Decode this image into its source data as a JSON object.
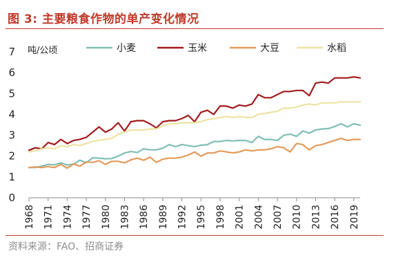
{
  "header": {
    "title": "图 3:  主要粮食作物的单产变化情况"
  },
  "footer": {
    "source": "资料来源：FAO、招商证券"
  },
  "colors": {
    "accent": "#c0392b",
    "wheat": "#7fbfb2",
    "corn": "#a11a1c",
    "soy": "#e39a5b",
    "rice": "#ece3a3"
  },
  "chart_data": {
    "type": "line",
    "ylabel": "吨/公顷",
    "ylim": [
      0,
      7
    ],
    "yticks": [
      "0",
      "1",
      "2",
      "3",
      "4",
      "5",
      "6",
      "7"
    ],
    "xlim": [
      1968,
      2020
    ],
    "xticks": [
      "1968",
      "1971",
      "1974",
      "1977",
      "1980",
      "1983",
      "1986",
      "1989",
      "1992",
      "1995",
      "1998",
      "2001",
      "2004",
      "2007",
      "2010",
      "2013",
      "2016",
      "2019"
    ],
    "grid": false,
    "legend": "top",
    "series": [
      {
        "name": "小麦",
        "color": "#7fbfb2",
        "points": [
          [
            1968,
            1.45
          ],
          [
            1969,
            1.45
          ],
          [
            1970,
            1.52
          ],
          [
            1971,
            1.6
          ],
          [
            1972,
            1.58
          ],
          [
            1973,
            1.68
          ],
          [
            1974,
            1.57
          ],
          [
            1975,
            1.62
          ],
          [
            1976,
            1.8
          ],
          [
            1977,
            1.68
          ],
          [
            1978,
            1.92
          ],
          [
            1979,
            1.9
          ],
          [
            1980,
            1.87
          ],
          [
            1981,
            1.88
          ],
          [
            1982,
            2.0
          ],
          [
            1983,
            2.15
          ],
          [
            1984,
            2.22
          ],
          [
            1985,
            2.17
          ],
          [
            1986,
            2.35
          ],
          [
            1987,
            2.3
          ],
          [
            1988,
            2.3
          ],
          [
            1989,
            2.38
          ],
          [
            1990,
            2.55
          ],
          [
            1991,
            2.45
          ],
          [
            1992,
            2.55
          ],
          [
            1993,
            2.5
          ],
          [
            1994,
            2.45
          ],
          [
            1995,
            2.52
          ],
          [
            1996,
            2.55
          ],
          [
            1997,
            2.7
          ],
          [
            1998,
            2.7
          ],
          [
            1999,
            2.75
          ],
          [
            2000,
            2.73
          ],
          [
            2001,
            2.75
          ],
          [
            2002,
            2.75
          ],
          [
            2003,
            2.65
          ],
          [
            2004,
            2.95
          ],
          [
            2005,
            2.8
          ],
          [
            2006,
            2.8
          ],
          [
            2007,
            2.75
          ],
          [
            2008,
            3.0
          ],
          [
            2009,
            3.05
          ],
          [
            2010,
            2.95
          ],
          [
            2011,
            3.2
          ],
          [
            2012,
            3.1
          ],
          [
            2013,
            3.25
          ],
          [
            2014,
            3.3
          ],
          [
            2015,
            3.32
          ],
          [
            2016,
            3.42
          ],
          [
            2017,
            3.55
          ],
          [
            2018,
            3.4
          ],
          [
            2019,
            3.55
          ],
          [
            2020,
            3.48
          ]
        ]
      },
      {
        "name": "玉米",
        "color": "#a11a1c",
        "points": [
          [
            1968,
            2.28
          ],
          [
            1969,
            2.4
          ],
          [
            1970,
            2.35
          ],
          [
            1971,
            2.65
          ],
          [
            1972,
            2.55
          ],
          [
            1973,
            2.8
          ],
          [
            1974,
            2.6
          ],
          [
            1975,
            2.75
          ],
          [
            1976,
            2.8
          ],
          [
            1977,
            2.9
          ],
          [
            1978,
            3.15
          ],
          [
            1979,
            3.4
          ],
          [
            1980,
            3.15
          ],
          [
            1981,
            3.3
          ],
          [
            1982,
            3.6
          ],
          [
            1983,
            3.2
          ],
          [
            1984,
            3.65
          ],
          [
            1985,
            3.7
          ],
          [
            1986,
            3.7
          ],
          [
            1987,
            3.55
          ],
          [
            1988,
            3.35
          ],
          [
            1989,
            3.65
          ],
          [
            1990,
            3.7
          ],
          [
            1991,
            3.7
          ],
          [
            1992,
            3.8
          ],
          [
            1993,
            3.95
          ],
          [
            1994,
            3.65
          ],
          [
            1995,
            4.1
          ],
          [
            1996,
            4.2
          ],
          [
            1997,
            4.0
          ],
          [
            1998,
            4.4
          ],
          [
            1999,
            4.4
          ],
          [
            2000,
            4.3
          ],
          [
            2001,
            4.45
          ],
          [
            2002,
            4.4
          ],
          [
            2003,
            4.5
          ],
          [
            2004,
            4.95
          ],
          [
            2005,
            4.8
          ],
          [
            2006,
            4.8
          ],
          [
            2007,
            4.95
          ],
          [
            2008,
            5.1
          ],
          [
            2009,
            5.1
          ],
          [
            2010,
            5.15
          ],
          [
            2011,
            5.15
          ],
          [
            2012,
            4.9
          ],
          [
            2013,
            5.5
          ],
          [
            2014,
            5.55
          ],
          [
            2015,
            5.5
          ],
          [
            2016,
            5.75
          ],
          [
            2017,
            5.75
          ],
          [
            2018,
            5.75
          ],
          [
            2019,
            5.8
          ],
          [
            2020,
            5.75
          ]
        ]
      },
      {
        "name": "大豆",
        "color": "#e39a5b",
        "points": [
          [
            1968,
            1.45
          ],
          [
            1969,
            1.48
          ],
          [
            1970,
            1.45
          ],
          [
            1971,
            1.5
          ],
          [
            1972,
            1.45
          ],
          [
            1973,
            1.6
          ],
          [
            1974,
            1.42
          ],
          [
            1975,
            1.62
          ],
          [
            1976,
            1.52
          ],
          [
            1977,
            1.72
          ],
          [
            1978,
            1.7
          ],
          [
            1979,
            1.78
          ],
          [
            1980,
            1.6
          ],
          [
            1981,
            1.75
          ],
          [
            1982,
            1.75
          ],
          [
            1983,
            1.68
          ],
          [
            1984,
            1.82
          ],
          [
            1985,
            1.9
          ],
          [
            1986,
            1.8
          ],
          [
            1987,
            1.95
          ],
          [
            1988,
            1.7
          ],
          [
            1989,
            1.85
          ],
          [
            1990,
            1.9
          ],
          [
            1991,
            1.9
          ],
          [
            1992,
            1.95
          ],
          [
            1993,
            2.05
          ],
          [
            1994,
            2.2
          ],
          [
            1995,
            2.0
          ],
          [
            1996,
            2.15
          ],
          [
            1997,
            2.15
          ],
          [
            1998,
            2.25
          ],
          [
            1999,
            2.2
          ],
          [
            2000,
            2.15
          ],
          [
            2001,
            2.2
          ],
          [
            2002,
            2.3
          ],
          [
            2003,
            2.25
          ],
          [
            2004,
            2.3
          ],
          [
            2005,
            2.3
          ],
          [
            2006,
            2.35
          ],
          [
            2007,
            2.45
          ],
          [
            2008,
            2.4
          ],
          [
            2009,
            2.2
          ],
          [
            2010,
            2.6
          ],
          [
            2011,
            2.55
          ],
          [
            2012,
            2.3
          ],
          [
            2013,
            2.5
          ],
          [
            2014,
            2.55
          ],
          [
            2015,
            2.65
          ],
          [
            2016,
            2.75
          ],
          [
            2017,
            2.85
          ],
          [
            2018,
            2.75
          ],
          [
            2019,
            2.8
          ],
          [
            2020,
            2.8
          ]
        ]
      },
      {
        "name": "水稻",
        "color": "#ece3a3",
        "points": [
          [
            1968,
            2.2
          ],
          [
            1969,
            2.25
          ],
          [
            1970,
            2.35
          ],
          [
            1971,
            2.4
          ],
          [
            1972,
            2.35
          ],
          [
            1973,
            2.5
          ],
          [
            1974,
            2.45
          ],
          [
            1975,
            2.55
          ],
          [
            1976,
            2.5
          ],
          [
            1977,
            2.6
          ],
          [
            1978,
            2.7
          ],
          [
            1979,
            2.75
          ],
          [
            1980,
            2.8
          ],
          [
            1981,
            2.85
          ],
          [
            1982,
            3.05
          ],
          [
            1983,
            3.15
          ],
          [
            1984,
            3.25
          ],
          [
            1985,
            3.25
          ],
          [
            1986,
            3.25
          ],
          [
            1987,
            3.3
          ],
          [
            1988,
            3.3
          ],
          [
            1989,
            3.45
          ],
          [
            1990,
            3.55
          ],
          [
            1991,
            3.55
          ],
          [
            1992,
            3.6
          ],
          [
            1993,
            3.6
          ],
          [
            1994,
            3.6
          ],
          [
            1995,
            3.65
          ],
          [
            1996,
            3.75
          ],
          [
            1997,
            3.8
          ],
          [
            1998,
            3.85
          ],
          [
            1999,
            3.9
          ],
          [
            2000,
            3.85
          ],
          [
            2001,
            3.9
          ],
          [
            2002,
            3.85
          ],
          [
            2003,
            3.85
          ],
          [
            2004,
            4.0
          ],
          [
            2005,
            4.05
          ],
          [
            2006,
            4.1
          ],
          [
            2007,
            4.15
          ],
          [
            2008,
            4.3
          ],
          [
            2009,
            4.3
          ],
          [
            2010,
            4.35
          ],
          [
            2011,
            4.45
          ],
          [
            2012,
            4.5
          ],
          [
            2013,
            4.45
          ],
          [
            2014,
            4.55
          ],
          [
            2015,
            4.55
          ],
          [
            2016,
            4.55
          ],
          [
            2017,
            4.6
          ],
          [
            2018,
            4.6
          ],
          [
            2019,
            4.6
          ],
          [
            2020,
            4.6
          ]
        ]
      }
    ]
  }
}
